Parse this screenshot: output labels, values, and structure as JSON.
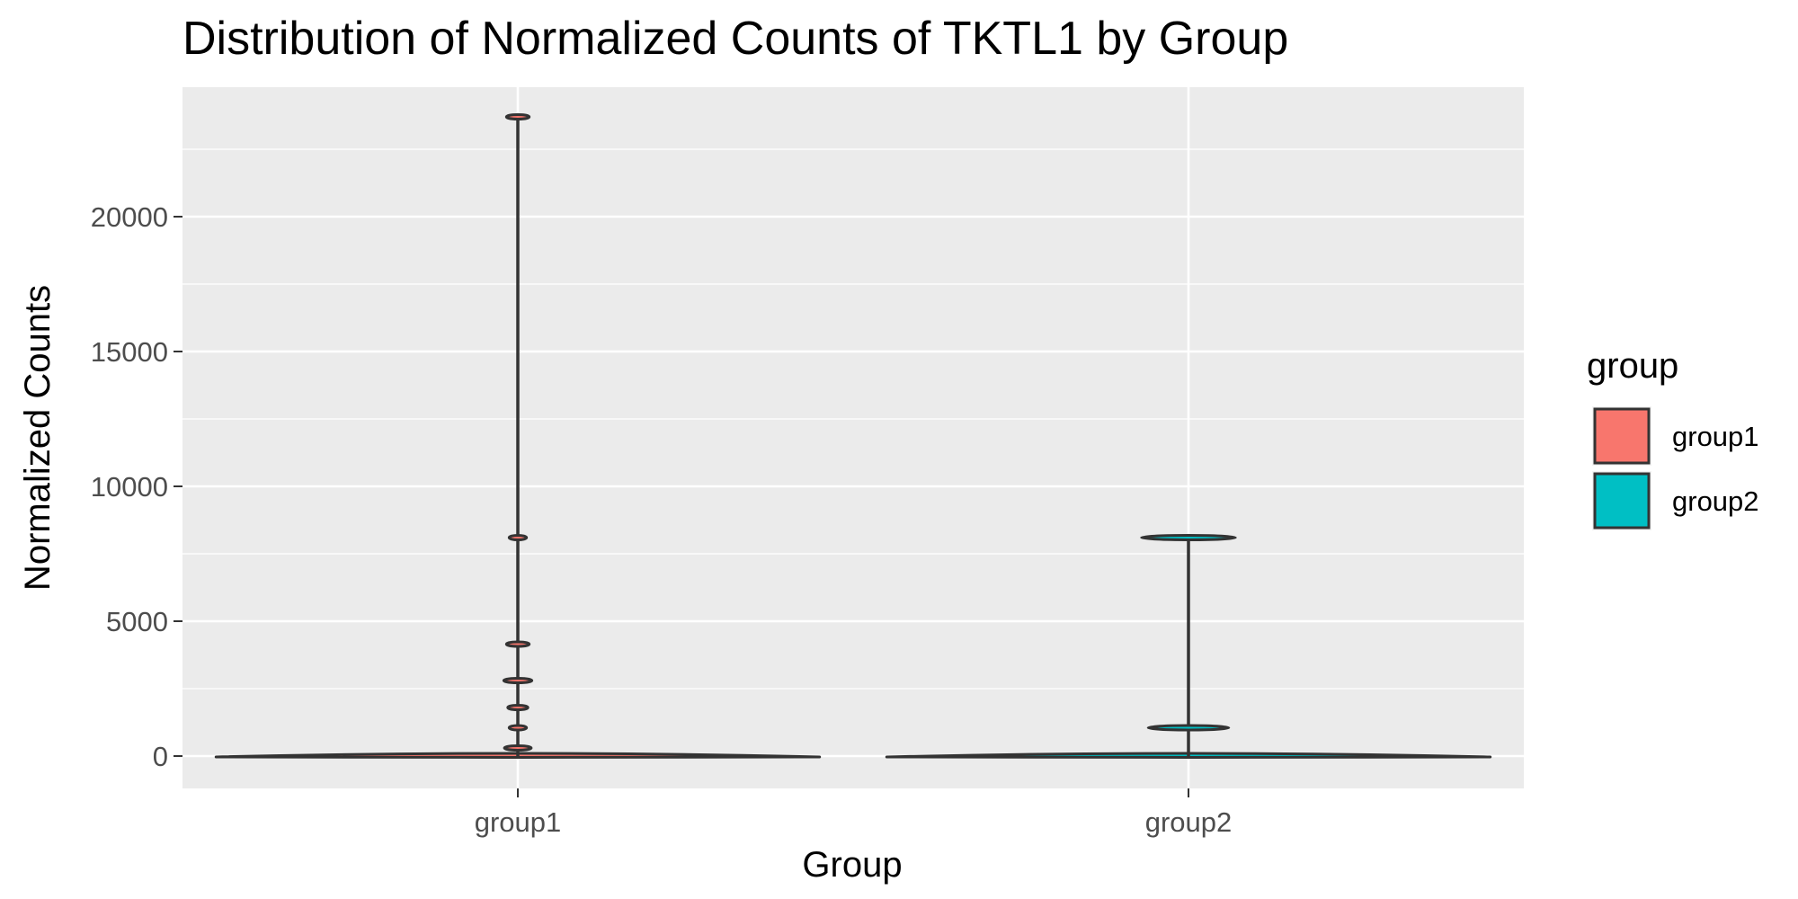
{
  "chart_data": {
    "type": "violin",
    "title": "Distribution of Normalized Counts of TKTL1 by Group",
    "xlabel": "Group",
    "ylabel": "Normalized Counts",
    "categories": [
      "group1",
      "group2"
    ],
    "ylim": [
      -1200,
      24800
    ],
    "yticks": [
      0,
      5000,
      10000,
      15000,
      20000
    ],
    "ytick_labels": [
      "0",
      "5000",
      "10000",
      "15000",
      "20000"
    ],
    "grid": true,
    "series": [
      {
        "name": "group1",
        "color": "#F8766D",
        "max": 23700,
        "bulges": [
          {
            "y": 23700,
            "w": 0.017
          },
          {
            "y": 8100,
            "w": 0.013
          },
          {
            "y": 4150,
            "w": 0.017
          },
          {
            "y": 2800,
            "w": 0.021
          },
          {
            "y": 1800,
            "w": 0.015
          },
          {
            "y": 1050,
            "w": 0.013
          },
          {
            "y": 300,
            "w": 0.02
          }
        ]
      },
      {
        "name": "group2",
        "color": "#00BFC4",
        "max": 8100,
        "bulges": [
          {
            "y": 8100,
            "w": 0.07
          },
          {
            "y": 1050,
            "w": 0.06
          }
        ]
      }
    ],
    "legend": {
      "title": "group",
      "position": "right",
      "items": [
        {
          "label": "group1",
          "color": "#F8766D"
        },
        {
          "label": "group2",
          "color": "#00BFC4"
        }
      ]
    }
  }
}
